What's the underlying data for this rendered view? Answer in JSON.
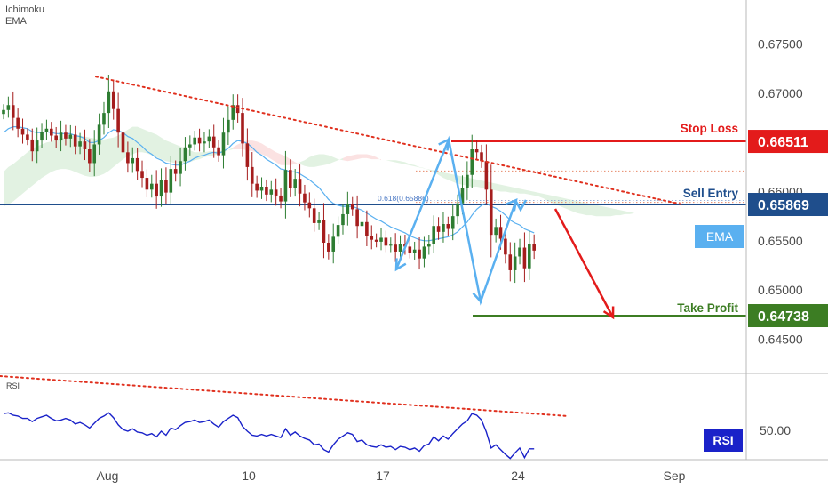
{
  "indicators": [
    "Ichimoku",
    "EMA"
  ],
  "colors": {
    "up": "#2e7d32",
    "down": "#a51d1d",
    "stop_loss": "#e31b1b",
    "sell_entry": "#1f4e8c",
    "take_profit": "#3c7d23",
    "ema": "#5ab0f0",
    "cloud_green": "#e2f2e2",
    "cloud_red": "#fbe2e2",
    "rsi_line": "#1a22c9",
    "trend": "#e0301e"
  },
  "chart_data": [
    {
      "type": "candlestick",
      "ylim": [
        0.6415,
        0.6795
      ],
      "yticks": [
        "0.67500",
        "0.67000",
        "0.66500",
        "0.66000",
        "0.65500",
        "0.65000",
        "0.64500"
      ],
      "xticks": [
        "Aug",
        "10",
        "17",
        "24",
        "Sep"
      ],
      "close": [
        0.6683,
        0.6688,
        0.6675,
        0.6664,
        0.6658,
        0.6653,
        0.6641,
        0.6652,
        0.6661,
        0.6664,
        0.6657,
        0.6652,
        0.666,
        0.6654,
        0.6658,
        0.6646,
        0.6651,
        0.6643,
        0.6629,
        0.6648,
        0.6668,
        0.668,
        0.6702,
        0.6684,
        0.666,
        0.664,
        0.6629,
        0.6634,
        0.6621,
        0.6614,
        0.6602,
        0.6608,
        0.6595,
        0.6612,
        0.6599,
        0.6623,
        0.6618,
        0.6631,
        0.6645,
        0.6648,
        0.6655,
        0.6649,
        0.6651,
        0.6656,
        0.6645,
        0.6637,
        0.666,
        0.6673,
        0.6688,
        0.668,
        0.6649,
        0.6625,
        0.6608,
        0.6601,
        0.6605,
        0.6597,
        0.6602,
        0.6596,
        0.659,
        0.6622,
        0.6604,
        0.6613,
        0.6598,
        0.6589,
        0.6583,
        0.6568,
        0.6571,
        0.6548,
        0.6539,
        0.6554,
        0.6566,
        0.6577,
        0.6587,
        0.6582,
        0.6565,
        0.6569,
        0.6555,
        0.6551,
        0.6549,
        0.6553,
        0.6545,
        0.6546,
        0.6539,
        0.6547,
        0.6544,
        0.6538,
        0.6541,
        0.6532,
        0.6544,
        0.6547,
        0.6565,
        0.6559,
        0.6567,
        0.6562,
        0.6575,
        0.6588,
        0.6604,
        0.6617,
        0.6643,
        0.664,
        0.6631,
        0.6602,
        0.6556,
        0.6564,
        0.6552,
        0.6536,
        0.652,
        0.6534,
        0.6543,
        0.6522,
        0.6547,
        0.654
      ],
      "ema": [
        0.666,
        0.6664,
        0.6666,
        0.6666,
        0.6665,
        0.6664,
        0.6661,
        0.666,
        0.666,
        0.6661,
        0.666,
        0.6659,
        0.6659,
        0.6659,
        0.6659,
        0.6657,
        0.6656,
        0.6654,
        0.665,
        0.665,
        0.6652,
        0.6655,
        0.666,
        0.6663,
        0.6662,
        0.666,
        0.6656,
        0.6654,
        0.665,
        0.6646,
        0.6641,
        0.6638,
        0.6634,
        0.6632,
        0.6629,
        0.6628,
        0.6627,
        0.6627,
        0.6629,
        0.6631,
        0.6634,
        0.6636,
        0.6637,
        0.6639,
        0.664,
        0.6639,
        0.6641,
        0.6644,
        0.6649,
        0.6652,
        0.6651,
        0.6649,
        0.6645,
        0.664,
        0.6637,
        0.6633,
        0.663,
        0.6627,
        0.6623,
        0.6622,
        0.662,
        0.662,
        0.6618,
        0.6615,
        0.6612,
        0.6608,
        0.6604,
        0.6598,
        0.6592,
        0.6588,
        0.6586,
        0.6585,
        0.6585,
        0.6585,
        0.6583,
        0.6581,
        0.6578,
        0.6575,
        0.6572,
        0.657,
        0.6567,
        0.6564,
        0.6562,
        0.656,
        0.6558,
        0.6555,
        0.6553,
        0.6551,
        0.655,
        0.655,
        0.6551,
        0.6552,
        0.6553,
        0.6554,
        0.6556,
        0.6559,
        0.6564,
        0.6569,
        0.6576,
        0.6582,
        0.6586,
        0.6588,
        0.6585,
        0.6583,
        0.658,
        0.6576,
        0.6571,
        0.6568,
        0.6566,
        0.6562,
        0.656,
        0.6558
      ],
      "cloud_top": [
        0.662,
        0.6625,
        0.6628,
        0.6632,
        0.6636,
        0.664,
        0.6644,
        0.6646,
        0.6648,
        0.665,
        0.6651,
        0.6653,
        0.6654,
        0.6655,
        0.6656,
        0.6657,
        0.6657,
        0.6656,
        0.6655,
        0.6654,
        0.6653,
        0.6653,
        0.6654,
        0.6655,
        0.6657,
        0.666,
        0.6663,
        0.6666,
        0.6666,
        0.6664,
        0.6662,
        0.666,
        0.6658,
        0.6655,
        0.6652,
        0.665,
        0.6648,
        0.6646,
        0.6644,
        0.6642,
        0.664,
        0.664,
        0.664,
        0.6641,
        0.6641,
        0.6641,
        0.6642,
        0.6642,
        0.6643,
        0.6643,
        0.6643,
        0.6642,
        0.6641,
        0.664,
        0.6638,
        0.6636,
        0.6633,
        0.663,
        0.6627,
        0.6627,
        0.6627,
        0.6628,
        0.663,
        0.6632,
        0.6635,
        0.6637,
        0.6638,
        0.6638,
        0.6637,
        0.6635,
        0.6633,
        0.6632,
        0.6631,
        0.6632,
        0.6633,
        0.6634,
        0.6634,
        0.6633,
        0.6633,
        0.6633,
        0.6632,
        0.6632,
        0.6632,
        0.6631,
        0.663,
        0.6628,
        0.6627,
        0.6625,
        0.6624,
        0.6622,
        0.662,
        0.6617,
        0.6614,
        0.6612,
        0.661,
        0.6608,
        0.6607,
        0.6606,
        0.6605,
        0.6605,
        0.6604,
        0.6603,
        0.6602,
        0.6601,
        0.66,
        0.66,
        0.6599,
        0.6599,
        0.6598,
        0.6598,
        0.6597,
        0.6596,
        0.6595,
        0.6593,
        0.659,
        0.6588,
        0.6586,
        0.6584,
        0.6582,
        0.658,
        0.6578,
        0.6577,
        0.6576,
        0.6576,
        0.6575,
        0.6575,
        0.6575,
        0.6575,
        0.6576,
        0.6576,
        0.6577,
        0.6577,
        0.6578,
        0.6578
      ],
      "cloud_bottom": [
        0.6585,
        0.6587,
        0.659,
        0.6594,
        0.6598,
        0.6602,
        0.6606,
        0.661,
        0.6614,
        0.6617,
        0.662,
        0.6622,
        0.6623,
        0.6623,
        0.6622,
        0.662,
        0.6618,
        0.6616,
        0.6615,
        0.6615,
        0.6616,
        0.6618,
        0.6621,
        0.6625,
        0.6629,
        0.6633,
        0.6636,
        0.6638,
        0.664,
        0.664,
        0.6639,
        0.6637,
        0.6635,
        0.6633,
        0.6631,
        0.663,
        0.6629,
        0.6629,
        0.6629,
        0.663,
        0.6632,
        0.6633,
        0.6635,
        0.6636,
        0.6637,
        0.6638,
        0.664,
        0.6642,
        0.6645,
        0.6648,
        0.665,
        0.6652,
        0.6652,
        0.6651,
        0.6649,
        0.6646,
        0.6643,
        0.664,
        0.6638,
        0.6636,
        0.6633,
        0.663,
        0.6628,
        0.6626,
        0.6625,
        0.6625,
        0.6626,
        0.6627,
        0.6628,
        0.663,
        0.6632,
        0.6634,
        0.6636,
        0.6637,
        0.6638,
        0.6638,
        0.6638,
        0.6637,
        0.6635,
        0.6632,
        0.6629,
        0.6626,
        0.6623,
        0.6621,
        0.6619,
        0.6618,
        0.6617,
        0.6616,
        0.6616,
        0.6616,
        0.6615,
        0.6614,
        0.6612,
        0.661,
        0.6608,
        0.6605,
        0.6602,
        0.6598,
        0.6594,
        0.6591,
        0.6588,
        0.6586,
        0.6584,
        0.6582,
        0.658,
        0.6579,
        0.6578,
        0.6576,
        0.6574,
        0.6572,
        0.657,
        0.6568,
        0.6566,
        0.6564,
        0.6562,
        0.656,
        0.6558,
        0.6556,
        0.6556,
        0.6555,
        0.6555,
        0.6556,
        0.6556,
        0.6557,
        0.6558,
        0.6559,
        0.656,
        0.6561,
        0.6562,
        0.6563,
        0.6564,
        0.6565
      ],
      "levels": [
        {
          "name": "Stop Loss",
          "value": 0.66511,
          "price_label": "0.66511"
        },
        {
          "name": "Sell Entry",
          "value": 0.65869,
          "price_label": "0.65869"
        },
        {
          "name": "Take Profit",
          "value": 0.64738,
          "price_label": "0.64738"
        }
      ],
      "fib_label": "0.618(0.65886)",
      "fib_levels": [
        0.6621,
        0.6591,
        0.6589
      ],
      "annotations": [
        "Stop Loss",
        "Sell Entry",
        "Take Profit",
        "EMA"
      ]
    },
    {
      "type": "line",
      "name": "RSI",
      "legend": "RSI",
      "series_label": "RSI",
      "ytick": "50.00",
      "values": [
        72,
        73,
        70,
        69,
        66,
        66,
        62,
        66,
        68,
        70,
        66,
        63,
        64,
        66,
        64,
        59,
        61,
        58,
        54,
        60,
        66,
        69,
        73,
        67,
        58,
        52,
        50,
        53,
        49,
        48,
        45,
        47,
        43,
        50,
        45,
        54,
        52,
        57,
        61,
        62,
        64,
        61,
        62,
        64,
        59,
        55,
        62,
        66,
        70,
        67,
        56,
        50,
        45,
        44,
        46,
        44,
        46,
        44,
        42,
        53,
        45,
        49,
        44,
        41,
        39,
        33,
        34,
        27,
        24,
        33,
        40,
        44,
        48,
        46,
        37,
        39,
        33,
        31,
        30,
        33,
        30,
        31,
        27,
        31,
        30,
        27,
        29,
        25,
        32,
        34,
        43,
        38,
        44,
        40,
        47,
        53,
        59,
        63,
        72,
        70,
        64,
        49,
        29,
        33,
        27,
        21,
        16,
        23,
        29,
        17,
        28,
        28
      ]
    }
  ]
}
